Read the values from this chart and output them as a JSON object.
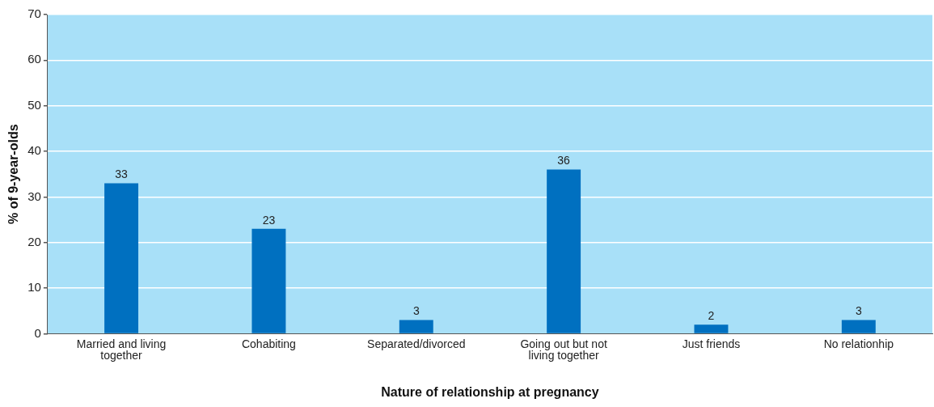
{
  "chart_data": {
    "type": "bar",
    "xlabel": "Nature of relationship at pregnancy",
    "ylabel": "% of 9-year-olds",
    "categories": [
      "Married and living together",
      "Cohabiting",
      "Separated/divorced",
      "Going out but not living together",
      "Just friends",
      "No relationhip"
    ],
    "values": [
      33,
      23,
      3,
      36,
      2,
      3
    ],
    "color": "#0070c0",
    "ylim": [
      0,
      70
    ],
    "yticks": [
      0,
      10,
      20,
      30,
      40,
      50,
      60,
      70
    ],
    "grid": "y",
    "data_labels": true
  }
}
